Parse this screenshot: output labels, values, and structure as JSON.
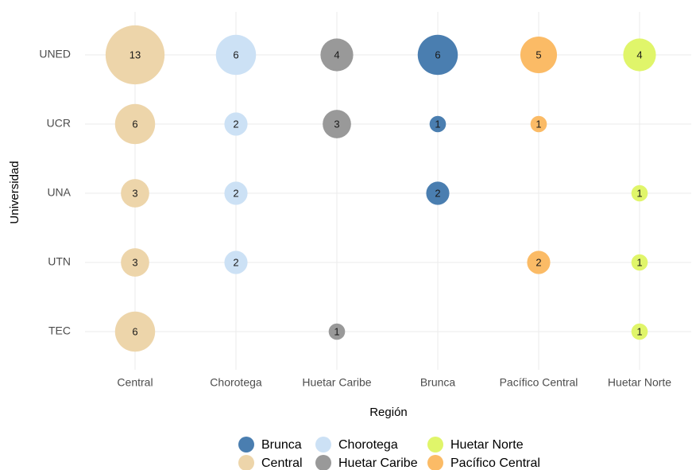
{
  "chart_data": {
    "type": "bubble",
    "x_label": "Región",
    "y_label": "Universidad",
    "categories": [
      "Central",
      "Chorotega",
      "Huetar Caribe",
      "Brunca",
      "Pacífico Central",
      "Huetar Norte"
    ],
    "y_categories": [
      "UNED",
      "UCR",
      "UNA",
      "UTN",
      "TEC"
    ],
    "grid": true,
    "legend": "bottom",
    "series": [
      {
        "name": "Brunca",
        "color": "#4a7eb0",
        "x": [
          "Brunca",
          "Brunca",
          "Brunca"
        ],
        "y": [
          "UNED",
          "UCR",
          "UNA"
        ],
        "values": [
          6,
          1,
          2
        ]
      },
      {
        "name": "Central",
        "color": "#edd5aa",
        "x": [
          "Central",
          "Central",
          "Central",
          "Central",
          "Central"
        ],
        "y": [
          "UNED",
          "UCR",
          "UNA",
          "UTN",
          "TEC"
        ],
        "values": [
          13,
          6,
          3,
          3,
          6
        ]
      },
      {
        "name": "Chorotega",
        "color": "#cce1f5",
        "x": [
          "Chorotega",
          "Chorotega",
          "Chorotega",
          "Chorotega"
        ],
        "y": [
          "UNED",
          "UCR",
          "UNA",
          "UTN"
        ],
        "values": [
          6,
          2,
          2,
          2
        ]
      },
      {
        "name": "Huetar Caribe",
        "color": "#999999",
        "x": [
          "Huetar Caribe",
          "Huetar Caribe",
          "Huetar Caribe"
        ],
        "y": [
          "UNED",
          "UCR",
          "TEC"
        ],
        "values": [
          4,
          3,
          1
        ]
      },
      {
        "name": "Huetar Norte",
        "color": "#e0f56a",
        "x": [
          "Huetar Norte",
          "Huetar Norte",
          "Huetar Norte",
          "Huetar Norte"
        ],
        "y": [
          "UNED",
          "UNA",
          "UTN",
          "TEC"
        ],
        "values": [
          4,
          1,
          1,
          1
        ]
      },
      {
        "name": "Pacífico Central",
        "color": "#fbbb66",
        "x": [
          "Pacífico Central",
          "Pacífico Central",
          "Pacífico Central"
        ],
        "y": [
          "UNED",
          "UCR",
          "UTN"
        ],
        "values": [
          5,
          1,
          2
        ]
      }
    ]
  }
}
